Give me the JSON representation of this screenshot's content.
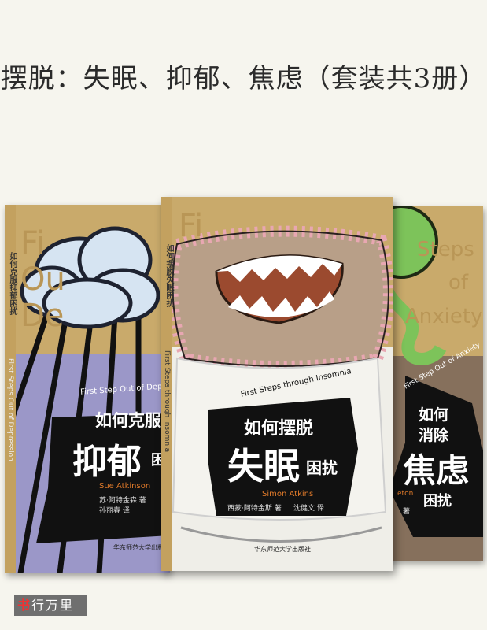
{
  "page_title": "摆脱：失眠、抑郁、焦虑（套装共3册）",
  "publisher": "华东师范大学出版社",
  "watermark": {
    "first_char": "书",
    "rest": "行万里"
  },
  "books": {
    "depression": {
      "bg_text_1": "Fi",
      "bg_text_2": "Ou",
      "bg_text_3": "De",
      "series_text": "First Step Out of Depression",
      "title_line_1": "如何克服",
      "title_line_2": "抑郁",
      "title_suffix": "困扰",
      "spine_title": "如何克服抑郁困扰",
      "spine_en": "First Steps Out of Depression",
      "author_en": "Sue Atkinson",
      "author_cn": "苏·阿特金森 著",
      "translator": "孙丽春 译"
    },
    "insomnia": {
      "bg_text_1": "Fi",
      "series_text": "First Steps through Insomnia",
      "title_line_1": "如何摆脱",
      "title_line_2": "失眠",
      "title_suffix": "困扰",
      "spine_title": "如何摆脱失眠困扰",
      "spine_en": "First Steps through Insomnia",
      "author_en": "Simon Atkins",
      "author_cn": "西蒙·阿特金斯 著",
      "translator": "沈健文 译"
    },
    "anxiety": {
      "bg_text_1": "Steps",
      "bg_text_2": "of",
      "bg_text_3": "Anxiety",
      "series_text": "First Step Out of Anxiety",
      "title_line_1": "如何",
      "title_line_2": "消除",
      "title_line_3": "焦虑",
      "title_suffix": "困扰",
      "author_en_partial": "eton",
      "author_cn_partial": "著"
    }
  }
}
